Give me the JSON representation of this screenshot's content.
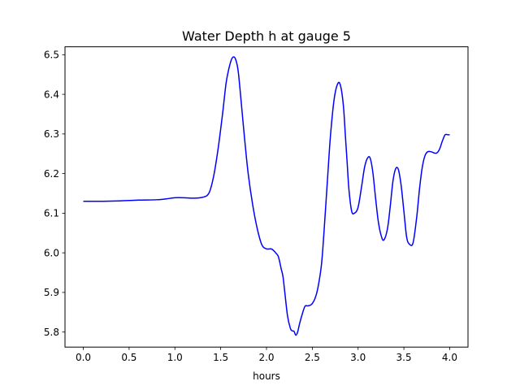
{
  "chart_data": {
    "type": "line",
    "title": "Water Depth h at gauge 5",
    "xlabel": "hours",
    "ylabel": "",
    "xlim": [
      -0.2,
      4.2
    ],
    "ylim": [
      5.762,
      6.52
    ],
    "xticks": [
      0.0,
      0.5,
      1.0,
      1.5,
      2.0,
      2.5,
      3.0,
      3.5,
      4.0
    ],
    "xtick_labels": [
      "0.0",
      "0.5",
      "1.0",
      "1.5",
      "2.0",
      "2.5",
      "3.0",
      "3.5",
      "4.0"
    ],
    "yticks": [
      5.8,
      5.9,
      6.0,
      6.1,
      6.2,
      6.3,
      6.4,
      6.5
    ],
    "ytick_labels": [
      "5.8",
      "5.9",
      "6.0",
      "6.1",
      "6.2",
      "6.3",
      "6.4",
      "6.5"
    ],
    "grid": false,
    "series": [
      {
        "color": "#0000ff",
        "x": [
          0.0,
          0.2,
          0.4,
          0.6,
          0.8,
          0.9,
          1.0,
          1.1,
          1.2,
          1.3,
          1.37,
          1.42,
          1.47,
          1.52,
          1.56,
          1.6,
          1.63,
          1.66,
          1.69,
          1.72,
          1.76,
          1.8,
          1.85,
          1.9,
          1.95,
          2.0,
          2.05,
          2.08,
          2.1,
          2.13,
          2.16,
          2.18,
          2.2,
          2.23,
          2.26,
          2.28,
          2.3,
          2.32,
          2.34,
          2.36,
          2.39,
          2.42,
          2.45,
          2.48,
          2.5,
          2.53,
          2.56,
          2.6,
          2.63,
          2.67,
          2.7,
          2.74,
          2.78,
          2.81,
          2.84,
          2.86,
          2.88,
          2.9,
          2.93,
          2.96,
          3.0,
          3.04,
          3.07,
          3.1,
          3.13,
          3.16,
          3.19,
          3.22,
          3.25,
          3.28,
          3.32,
          3.35,
          3.38,
          3.41,
          3.44,
          3.47,
          3.5,
          3.53,
          3.56,
          3.6,
          3.64,
          3.67,
          3.7,
          3.73,
          3.76,
          3.8,
          3.83,
          3.86,
          3.89,
          3.92,
          3.95,
          3.98,
          4.0
        ],
        "y": [
          6.13,
          6.13,
          6.131,
          6.133,
          6.134,
          6.136,
          6.139,
          6.139,
          6.138,
          6.14,
          6.15,
          6.19,
          6.26,
          6.35,
          6.43,
          6.475,
          6.493,
          6.49,
          6.46,
          6.39,
          6.29,
          6.2,
          6.12,
          6.06,
          6.02,
          6.01,
          6.01,
          6.005,
          6.0,
          5.99,
          5.96,
          5.94,
          5.9,
          5.84,
          5.81,
          5.803,
          5.802,
          5.792,
          5.8,
          5.82,
          5.845,
          5.865,
          5.866,
          5.868,
          5.872,
          5.885,
          5.91,
          5.97,
          6.06,
          6.2,
          6.3,
          6.39,
          6.428,
          6.42,
          6.37,
          6.3,
          6.23,
          6.16,
          6.105,
          6.1,
          6.115,
          6.17,
          6.215,
          6.238,
          6.24,
          6.205,
          6.14,
          6.08,
          6.045,
          6.032,
          6.06,
          6.115,
          6.18,
          6.212,
          6.21,
          6.17,
          6.105,
          6.04,
          6.022,
          6.025,
          6.09,
          6.16,
          6.215,
          6.245,
          6.255,
          6.255,
          6.252,
          6.252,
          6.262,
          6.282,
          6.298,
          6.298,
          6.298
        ]
      }
    ]
  }
}
